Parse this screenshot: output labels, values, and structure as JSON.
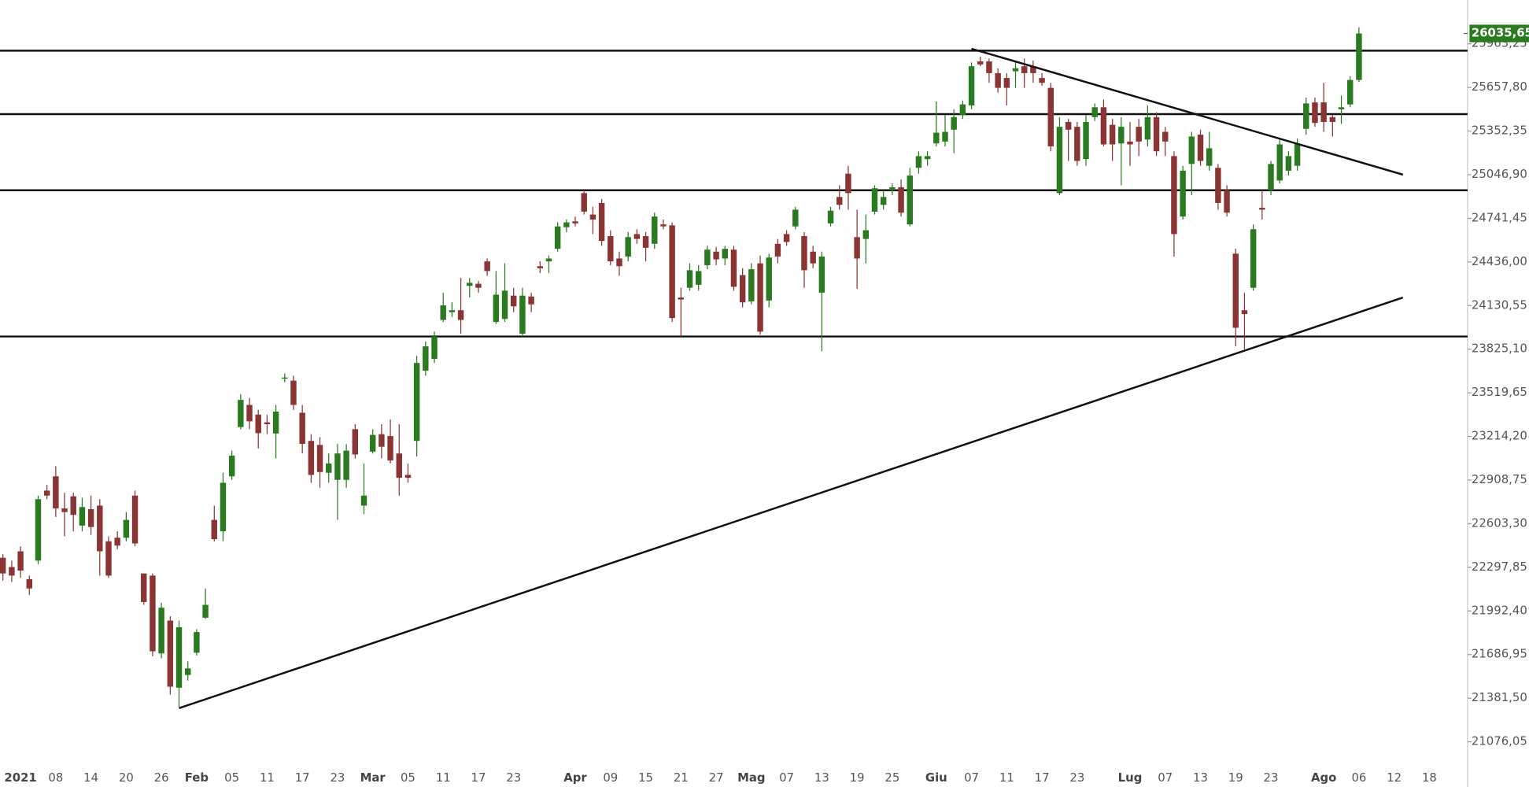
{
  "chart_data": {
    "type": "candlestick",
    "categories": [
      null,
      null,
      "2021",
      null,
      null,
      null,
      "08",
      null,
      null,
      null,
      "14",
      null,
      null,
      null,
      "20",
      null,
      null,
      null,
      "26",
      null,
      null,
      null,
      "Feb",
      null,
      null,
      null,
      "05",
      null,
      null,
      null,
      "11",
      null,
      null,
      null,
      "17",
      null,
      null,
      null,
      "23",
      null,
      null,
      null,
      "Mar",
      null,
      null,
      null,
      "05",
      null,
      null,
      null,
      "11",
      null,
      null,
      null,
      "17",
      null,
      null,
      null,
      "23",
      null,
      null,
      null,
      null,
      null,
      null,
      "Apr",
      null,
      null,
      null,
      "09",
      null,
      null,
      null,
      "15",
      null,
      null,
      null,
      "21",
      null,
      null,
      null,
      "27",
      null,
      null,
      null,
      "Mag",
      null,
      null,
      null,
      "07",
      null,
      null,
      null,
      "13",
      null,
      null,
      null,
      "19",
      null,
      null,
      null,
      "25",
      null,
      null,
      null,
      null,
      "Giu",
      null,
      null,
      null,
      "07",
      null,
      null,
      null,
      "11",
      null,
      null,
      null,
      "17",
      null,
      null,
      null,
      "23",
      null,
      null,
      null,
      null,
      null,
      "Lug",
      null,
      null,
      null,
      "07",
      null,
      null,
      null,
      "13",
      null,
      null,
      null,
      "19",
      null,
      null,
      null,
      "23",
      null,
      null,
      null,
      null,
      null,
      "Ago",
      null,
      null,
      null,
      "06",
      null,
      null,
      null,
      "12",
      null,
      null,
      null,
      "18"
    ],
    "open": [
      22365,
      22300,
      22410,
      22215,
      22345,
      22835,
      22935,
      22710,
      22795,
      22590,
      22705,
      22730,
      22480,
      22505,
      22505,
      22800,
      22255,
      22240,
      21695,
      21925,
      21455,
      21544,
      21700,
      21945,
      22630,
      22550,
      22935,
      23280,
      23435,
      23367,
      23313,
      23235,
      23620,
      23605,
      23380,
      23183,
      23155,
      22960,
      22910,
      22910,
      23265,
      22730,
      23108,
      23230,
      23217,
      23095,
      22945,
      23183,
      23675,
      23757,
      24030,
      24084,
      24098,
      24269,
      24283,
      24440,
      24016,
      24037,
      24200,
      23934,
      24194,
      24406,
      24440,
      24528,
      24679,
      24720,
      24918,
      24768,
      24849,
      24617,
      24460,
      24474,
      24631,
      24617,
      24563,
      24699,
      24692,
      24187,
      24255,
      24276,
      24413,
      24508,
      24460,
      24522,
      24344,
      24160,
      24426,
      24166,
      24563,
      24631,
      24685,
      24617,
      24508,
      24221,
      24706,
      24891,
      25054,
      24610,
      24597,
      24788,
      24836,
      24938,
      24959,
      24699,
      25095,
      25156,
      25266,
      25279,
      25362,
      25464,
      25532,
      25840,
      25840,
      25758,
      25724,
      25771,
      25806,
      25806,
      25724,
      25655,
      24918,
      25416,
      25382,
      25156,
      25450,
      25519,
      25396,
      25266,
      25279,
      25382,
      25293,
      25450,
      25347,
      25177,
      24754,
      25122,
      25327,
      25109,
      25095,
      24938,
      24494,
      24098,
      24255,
      24815,
      24938,
      25006,
      25075,
      25109,
      25368,
      25553,
      25553,
      25450,
      25505,
      25539,
      25710,
      null,
      null,
      null,
      null,
      null,
      null,
      null,
      null
    ],
    "high": [
      22390,
      22345,
      22445,
      22240,
      22800,
      22875,
      23005,
      22820,
      22820,
      22785,
      22800,
      22775,
      22515,
      22550,
      22685,
      22835,
      22255,
      22255,
      22050,
      21955,
      21925,
      21640,
      21865,
      22150,
      22730,
      22960,
      23115,
      23510,
      23485,
      23400,
      23365,
      23435,
      23655,
      23640,
      23435,
      23230,
      23210,
      23095,
      23162,
      23160,
      23300,
      23025,
      23265,
      23300,
      23333,
      23300,
      23025,
      23777,
      23879,
      23948,
      24221,
      24153,
      24324,
      24324,
      24303,
      24460,
      24372,
      24426,
      24255,
      24255,
      24221,
      24440,
      24481,
      24713,
      24733,
      24754,
      24938,
      24822,
      24877,
      24658,
      24508,
      24645,
      24665,
      24645,
      24781,
      24733,
      24713,
      24255,
      24426,
      24413,
      24549,
      24542,
      24549,
      24549,
      24392,
      24426,
      24481,
      24494,
      24597,
      24658,
      24822,
      24645,
      24549,
      24508,
      24822,
      24973,
      25109,
      24802,
      24768,
      24973,
      24938,
      24986,
      25013,
      25095,
      25211,
      25211,
      25560,
      25464,
      25505,
      25566,
      25833,
      25874,
      25860,
      25792,
      25758,
      25847,
      25860,
      25847,
      25758,
      25690,
      25450,
      25437,
      25416,
      25464,
      25546,
      25573,
      25437,
      25450,
      25416,
      25437,
      25532,
      25484,
      25382,
      25211,
      25109,
      25347,
      25362,
      25347,
      25122,
      24973,
      24528,
      24221,
      24699,
      24938,
      25143,
      25293,
      25211,
      25300,
      25587,
      25587,
      25690,
      25464,
      25601,
      25737,
      26079,
      null,
      null,
      null,
      null,
      null,
      null,
      null,
      null
    ],
    "low": [
      22205,
      22195,
      22225,
      22105,
      22320,
      22775,
      22650,
      22515,
      22550,
      22550,
      22525,
      22240,
      22225,
      22425,
      22480,
      22445,
      22035,
      21675,
      21660,
      21407,
      21320,
      21505,
      21680,
      21935,
      22480,
      22480,
      22910,
      23265,
      23265,
      23130,
      23230,
      23060,
      23593,
      23400,
      23095,
      22890,
      22855,
      22890,
      22630,
      22855,
      23060,
      22670,
      23095,
      23060,
      23025,
      22800,
      22890,
      23074,
      23640,
      23729,
      24016,
      24050,
      23934,
      24187,
      24221,
      24338,
      24002,
      24016,
      24084,
      23914,
      24084,
      24358,
      24358,
      24508,
      24645,
      24685,
      24768,
      24631,
      24549,
      24413,
      24338,
      24440,
      24563,
      24440,
      24528,
      24665,
      24016,
      23914,
      24235,
      24235,
      24385,
      24413,
      24413,
      24235,
      24118,
      24139,
      23927,
      24118,
      24426,
      24549,
      24665,
      24255,
      24392,
      23811,
      24685,
      24802,
      24802,
      24248,
      24426,
      24768,
      24802,
      24904,
      24754,
      24685,
      25054,
      25109,
      25245,
      25245,
      25198,
      25437,
      25505,
      25806,
      25690,
      25621,
      25532,
      25655,
      25655,
      25690,
      25669,
      25211,
      24904,
      25143,
      25109,
      25109,
      25423,
      25245,
      25143,
      24972,
      25109,
      25177,
      25245,
      25177,
      25177,
      24474,
      24733,
      24904,
      25109,
      25075,
      24802,
      24754,
      23845,
      23825,
      24235,
      24733,
      24904,
      24986,
      25041,
      25075,
      25327,
      25382,
      25347,
      25314,
      25402,
      25519,
      25696,
      null,
      null,
      null,
      null,
      null,
      null,
      null,
      null
    ],
    "close": [
      22255,
      22240,
      22275,
      22150,
      22775,
      22800,
      22710,
      22685,
      22665,
      22720,
      22580,
      22410,
      22240,
      22450,
      22630,
      22465,
      22055,
      21710,
      22015,
      21462,
      21878,
      21590,
      21845,
      22035,
      22495,
      22890,
      23080,
      23470,
      23320,
      23237,
      23300,
      23388,
      23627,
      23435,
      23162,
      22945,
      22965,
      23025,
      23095,
      23115,
      23088,
      22800,
      23225,
      23142,
      23046,
      22925,
      22925,
      23729,
      23845,
      23914,
      24132,
      24098,
      24030,
      24290,
      24255,
      24372,
      24207,
      24235,
      24125,
      24200,
      24139,
      24392,
      24460,
      24685,
      24713,
      24706,
      24788,
      24733,
      24583,
      24440,
      24406,
      24610,
      24597,
      24535,
      24754,
      24685,
      24043,
      24173,
      24378,
      24372,
      24522,
      24454,
      24528,
      24262,
      24153,
      24385,
      23948,
      24467,
      24474,
      24576,
      24802,
      24378,
      24426,
      24474,
      24795,
      24836,
      24918,
      24460,
      24658,
      24952,
      24891,
      24959,
      24781,
      25041,
      25177,
      25177,
      25341,
      25347,
      25450,
      25539,
      25806,
      25819,
      25758,
      25655,
      25655,
      25792,
      25758,
      25758,
      25690,
      25245,
      25382,
      25362,
      25143,
      25416,
      25519,
      25259,
      25259,
      25382,
      25259,
      25279,
      25450,
      25211,
      25279,
      24631,
      25075,
      25314,
      25143,
      25232,
      24849,
      24781,
      23975,
      24071,
      24665,
      24802,
      25122,
      25259,
      25177,
      25266,
      25546,
      25409,
      25416,
      25416,
      25519,
      25710,
      26035.65,
      null,
      null,
      null,
      null,
      null,
      null,
      null,
      null
    ],
    "up_color": "#2a7a1f",
    "down_color": "#8b3434",
    "ylim": [
      20910,
      26270
    ],
    "yticks": [
      {
        "value": 25963.25,
        "label": "25963,25"
      },
      {
        "value": 25657.8,
        "label": "25657,80"
      },
      {
        "value": 25352.35,
        "label": "25352,35"
      },
      {
        "value": 25046.9,
        "label": "25046,90"
      },
      {
        "value": 24741.45,
        "label": "24741,45"
      },
      {
        "value": 24436,
        "label": "24436,00"
      },
      {
        "value": 24130.55,
        "label": "24130,55"
      },
      {
        "value": 23825.1,
        "label": "23825,10"
      },
      {
        "value": 23519.65,
        "label": "23519,65"
      },
      {
        "value": 23214.2,
        "label": "23214,20"
      },
      {
        "value": 22908.75,
        "label": "22908,75"
      },
      {
        "value": 22603.3,
        "label": "22603,30"
      },
      {
        "value": 22297.85,
        "label": "22297,85"
      },
      {
        "value": 21992.4,
        "label": "21992,40"
      },
      {
        "value": 21686.95,
        "label": "21686,95"
      },
      {
        "value": 21381.5,
        "label": "21381,50"
      },
      {
        "value": 21076.05,
        "label": "21076,05"
      }
    ],
    "last_price": {
      "value": 26035.65,
      "label": "26035,65"
    },
    "hlines": [
      25915,
      25471,
      24938,
      23914
    ],
    "trendlines": [
      {
        "x": [
          20,
          159
        ],
        "y": [
          21312,
          24187
        ]
      },
      {
        "x": [
          110,
          159
        ],
        "y": [
          25929,
          25047
        ]
      }
    ]
  }
}
